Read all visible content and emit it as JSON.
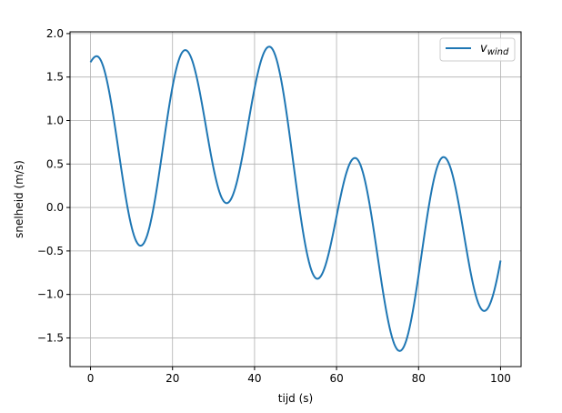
{
  "chart_data": {
    "type": "line",
    "title": "",
    "xlabel": "tijd (s)",
    "ylabel": "snelheid (m/s)",
    "xlim": [
      -5,
      105
    ],
    "ylim": [
      -1.83,
      2.02
    ],
    "xticks": [
      0,
      20,
      40,
      60,
      80,
      100
    ],
    "xtick_labels": [
      "0",
      "20",
      "40",
      "60",
      "80",
      "100"
    ],
    "yticks": [
      -1.5,
      -1.0,
      -0.5,
      0.0,
      0.5,
      1.0,
      1.5,
      2.0
    ],
    "ytick_labels": [
      "−1.5",
      "−1.0",
      "−0.5",
      "0.0",
      "0.5",
      "1.0",
      "1.5",
      "2.0"
    ],
    "grid": true,
    "legend_position": "top-right",
    "series": [
      {
        "name": "v_wind",
        "legend_main": "v",
        "legend_sub": "wind",
        "color": "#1f77b4",
        "points": [
          [
            0,
            1.67
          ],
          [
            1.5,
            1.74
          ],
          [
            12.2,
            -0.44
          ],
          [
            23.1,
            1.81
          ],
          [
            33.2,
            0.05
          ],
          [
            43.6,
            1.85
          ],
          [
            55.3,
            -0.82
          ],
          [
            64.5,
            0.57
          ],
          [
            75.4,
            -1.65
          ],
          [
            86.1,
            0.58
          ],
          [
            96.0,
            -1.19
          ],
          [
            100,
            -0.61
          ]
        ]
      }
    ]
  }
}
